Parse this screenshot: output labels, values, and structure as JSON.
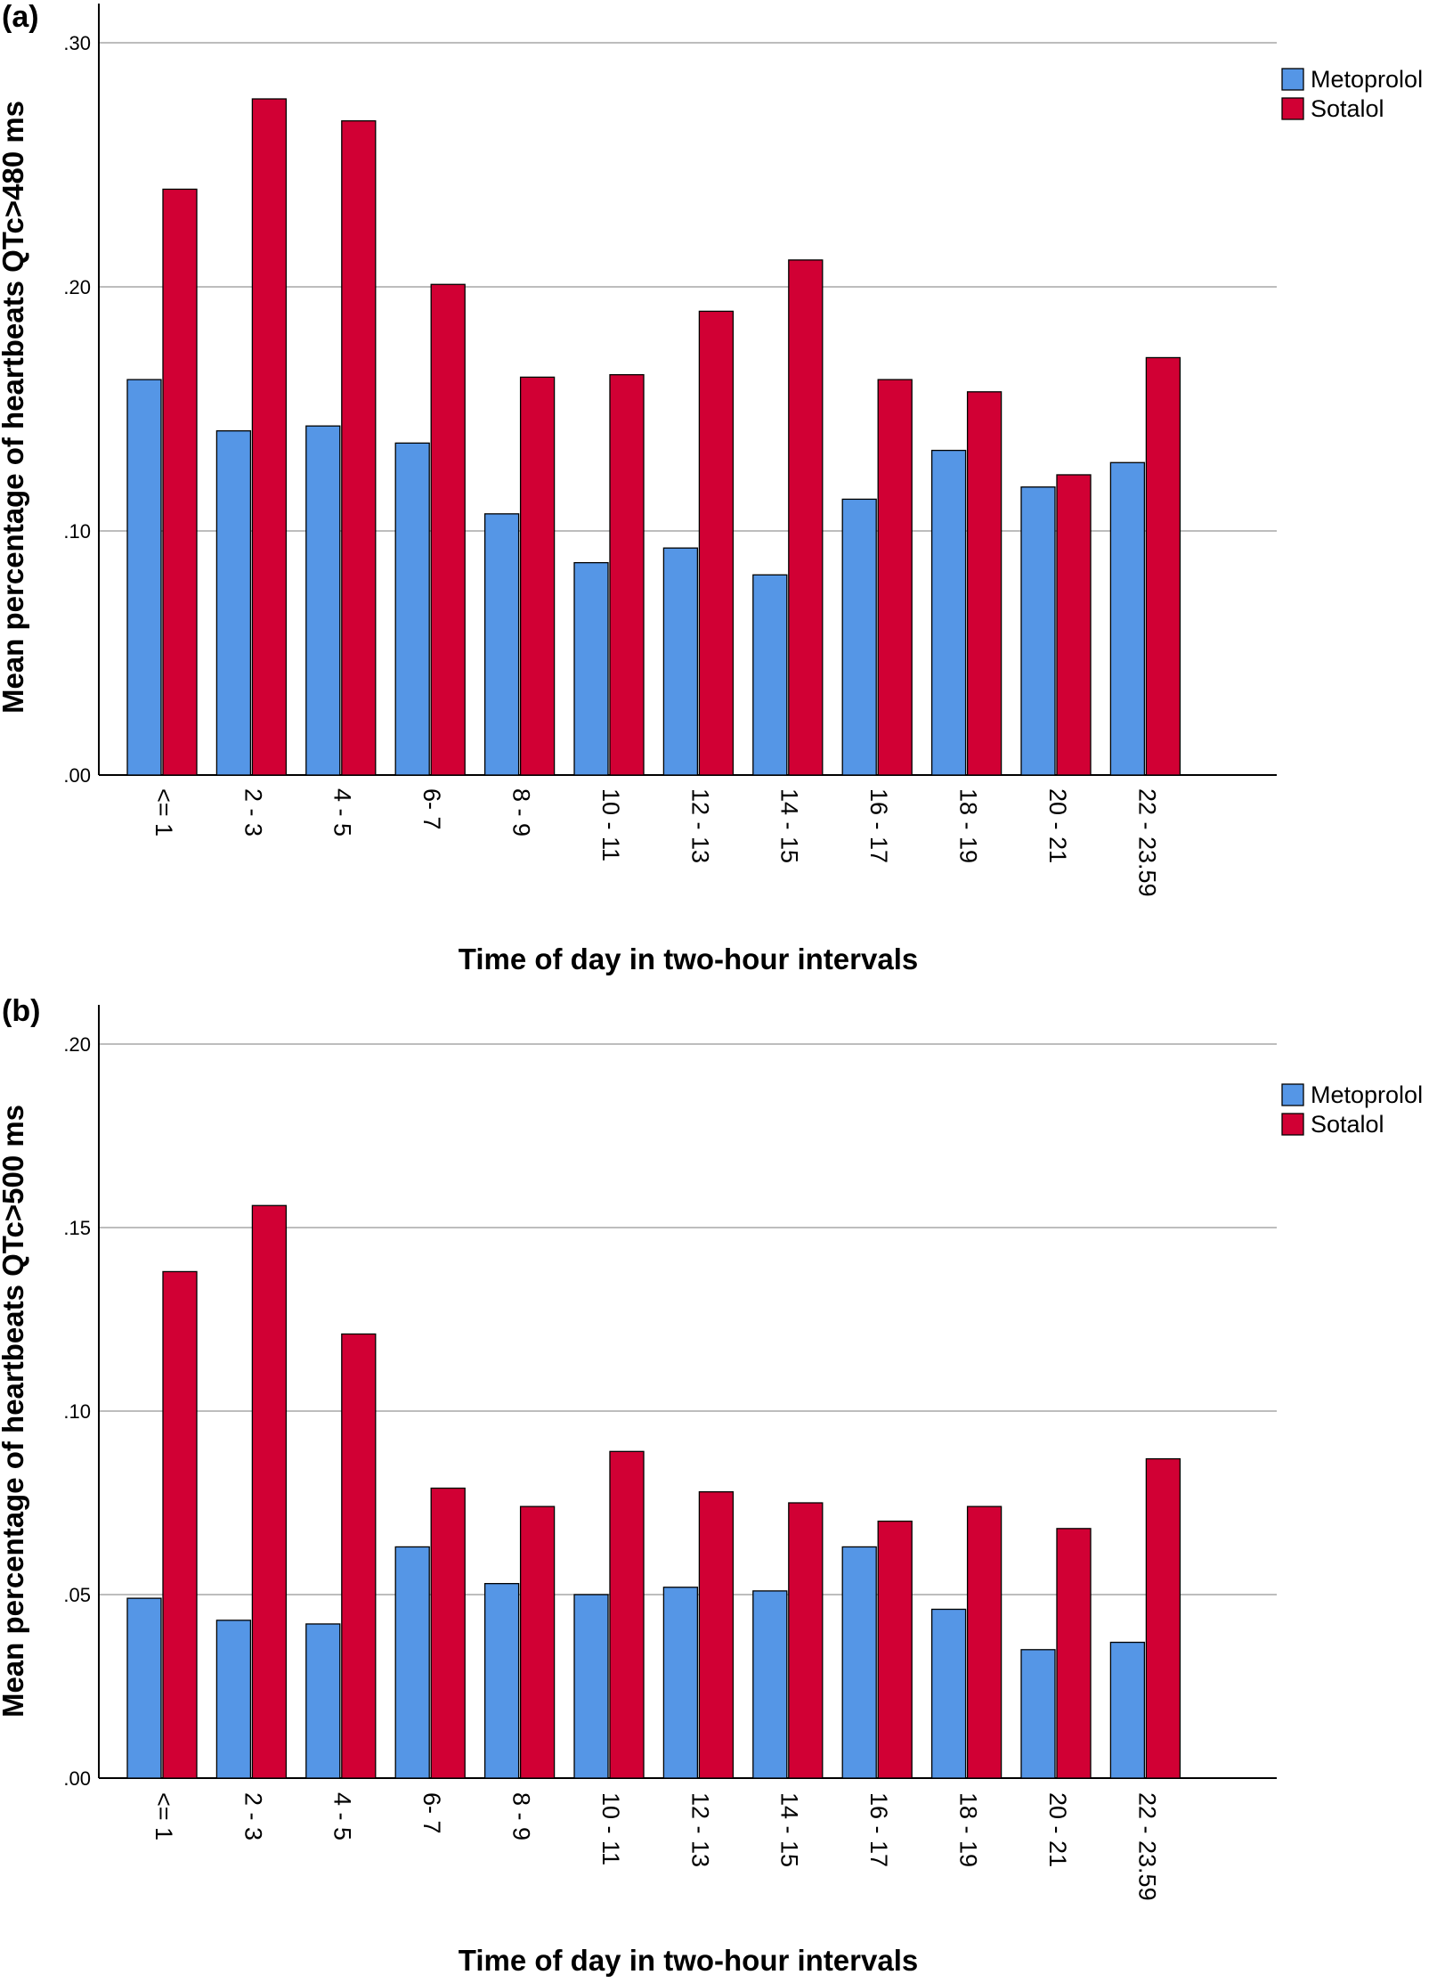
{
  "colors": {
    "metoprolol": "#5596e6",
    "sotalol": "#d10034",
    "grid": "#bdbdbd",
    "axis": "#000000"
  },
  "chart_data": [
    {
      "panel_label": "(a)",
      "type": "bar",
      "categories": [
        "<= 1",
        "2 - 3",
        "4 - 5",
        "6- 7",
        "8 - 9",
        "10 - 11",
        "12 - 13",
        "14 - 15",
        "16 - 17",
        "18 - 19",
        "20 - 21",
        "22 - 23.59"
      ],
      "series": [
        {
          "name": "Metoprolol",
          "color_key": "metoprolol",
          "values": [
            0.162,
            0.141,
            0.143,
            0.136,
            0.107,
            0.087,
            0.093,
            0.082,
            0.113,
            0.133,
            0.118,
            0.128
          ]
        },
        {
          "name": "Sotalol",
          "color_key": "sotalol",
          "values": [
            0.24,
            0.277,
            0.268,
            0.201,
            0.163,
            0.164,
            0.19,
            0.211,
            0.162,
            0.157,
            0.123,
            0.171
          ]
        }
      ],
      "xlabel": "Time of day in two-hour intervals",
      "ylabel": "Mean percentage of heartbeats QTc>480 ms",
      "ylim": [
        0,
        0.3
      ],
      "yticks": [
        0,
        0.1,
        0.2,
        0.3
      ],
      "ytick_labels": [
        ".00",
        ".10",
        ".20",
        ".30"
      ],
      "grid": true,
      "legend": "top-right"
    },
    {
      "panel_label": "(b)",
      "type": "bar",
      "categories": [
        "<= 1",
        "2 - 3",
        "4 - 5",
        "6- 7",
        "8 - 9",
        "10 - 11",
        "12 - 13",
        "14 - 15",
        "16 - 17",
        "18 - 19",
        "20 - 21",
        "22 - 23.59"
      ],
      "series": [
        {
          "name": "Metoprolol",
          "color_key": "metoprolol",
          "values": [
            0.049,
            0.043,
            0.042,
            0.063,
            0.053,
            0.05,
            0.052,
            0.051,
            0.063,
            0.046,
            0.035,
            0.037
          ]
        },
        {
          "name": "Sotalol",
          "color_key": "sotalol",
          "values": [
            0.138,
            0.156,
            0.121,
            0.079,
            0.074,
            0.089,
            0.078,
            0.075,
            0.07,
            0.074,
            0.068,
            0.087
          ]
        }
      ],
      "xlabel": "Time of day in two-hour intervals",
      "ylabel": "Mean percentage of heartbeats QTc>500 ms",
      "ylim": [
        0,
        0.2
      ],
      "yticks": [
        0,
        0.05,
        0.1,
        0.15,
        0.2
      ],
      "ytick_labels": [
        ".00",
        ".05",
        ".10",
        ".15",
        ".20"
      ],
      "grid": true,
      "legend": "top-right"
    }
  ]
}
